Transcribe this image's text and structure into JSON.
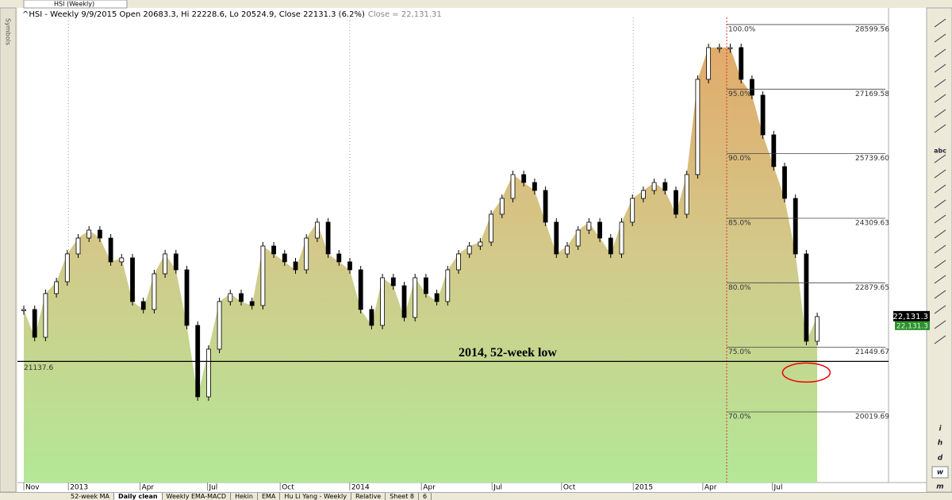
{
  "window": {
    "tab_title": "HSI (Weekly)",
    "side_tab": "Symbols"
  },
  "header": {
    "quote": "^HSI - Weekly 9/9/2015 Open 20683.3, Hi 22228.6, Lo 20524.9, Close 22131.3 (6.2%)",
    "close_readout": "Close = 22,131.31"
  },
  "chart_data": {
    "type": "area",
    "values": [
      22288,
      21673,
      22640,
      22903,
      23519,
      23870,
      24046,
      23870,
      23343,
      23431,
      22464,
      22288,
      23079,
      23519,
      23167,
      21936,
      20354,
      21409,
      22464,
      22640,
      22464,
      22376,
      23694,
      23519,
      23343,
      23167,
      23870,
      24222,
      23519,
      23343,
      23167,
      22288,
      21936,
      22991,
      22815,
      22112,
      22991,
      22640,
      22464,
      23167,
      23519,
      23694,
      23782,
      24398,
      24749,
      25277,
      25101,
      24925,
      24222,
      23519,
      23694,
      24046,
      24222,
      23870,
      23519,
      24222,
      24749,
      24925,
      25101,
      24925,
      24398,
      25277,
      27386,
      28090,
      28090,
      28090,
      27386,
      27035,
      26156,
      25453,
      24749,
      23519,
      21585,
      22131.3
    ],
    "last_value_label": "22,131.3",
    "area_colors": [
      "#e3a766",
      "#d3c98a",
      "#b3e896"
    ],
    "up_color": "#ffffff",
    "down_color": "#000000",
    "xlim": [
      -0.15,
      79.6
    ],
    "xticks": [
      {
        "value": 0,
        "label": "Nov"
      },
      {
        "value": 4.1,
        "label": "2013"
      },
      {
        "value": 10.7,
        "label": "Apr"
      },
      {
        "value": 16.9,
        "label": "Jul"
      },
      {
        "value": 23.6,
        "label": "Oct"
      },
      {
        "value": 30.0,
        "label": "2014"
      },
      {
        "value": 36.6,
        "label": "Apr"
      },
      {
        "value": 43.1,
        "label": "Jul"
      },
      {
        "value": 49.5,
        "label": "Oct"
      },
      {
        "value": 56.1,
        "label": "2015"
      },
      {
        "value": 62.5,
        "label": "Apr"
      },
      {
        "value": 68.9,
        "label": "Jul"
      }
    ],
    "ylim": [
      18455,
      28757
    ],
    "support_level": 21137.6,
    "annotation": "2014, 52-week low",
    "fib_levels": [
      {
        "label": "100.0%",
        "price": 28599.56
      },
      {
        "label": "95.0%",
        "price": 27169.58
      },
      {
        "label": "90.0%",
        "price": {
          "value": 25739.6,
          "label": "25739.60"
        }
      },
      {
        "label": "85.0%",
        "price": 24309.63
      },
      {
        "label": "80.0%",
        "price": 22879.65
      },
      {
        "label": "75.0%",
        "price": 21449.67
      },
      {
        "label": "70.0%",
        "price": 20019.69
      }
    ]
  },
  "toolbar": {
    "labels": [
      "abc",
      "i",
      "h",
      "d",
      "w",
      "m"
    ]
  },
  "sheet_tabs": [
    "52-week MA",
    "Daily clean",
    "Weekly EMA-MACD",
    "Hekin",
    "EMA",
    "Hu Li Yang - Weekly",
    "Relative",
    "Sheet 8",
    "6"
  ]
}
